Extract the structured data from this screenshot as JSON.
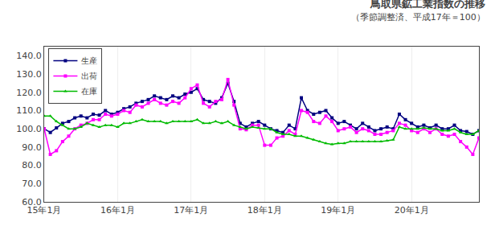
{
  "chart_data": {
    "type": "line",
    "title": "鳥取県鉱工業指数の推移",
    "subtitle": "（季節調整済、平成17年＝100）",
    "categories": [
      "15年1月",
      null,
      null,
      null,
      null,
      null,
      null,
      null,
      null,
      null,
      null,
      null,
      "16年1月",
      null,
      null,
      null,
      null,
      null,
      null,
      null,
      null,
      null,
      null,
      null,
      "17年1月",
      null,
      null,
      null,
      null,
      null,
      null,
      null,
      null,
      null,
      null,
      null,
      "18年1月",
      null,
      null,
      null,
      null,
      null,
      null,
      null,
      null,
      null,
      null,
      null,
      "19年1月",
      null,
      null,
      null,
      null,
      null,
      null,
      null,
      null,
      null,
      null,
      null,
      "20年1月",
      null,
      null,
      null,
      null,
      null,
      null,
      null,
      null,
      null,
      null,
      null
    ],
    "series": [
      {
        "name": "生産",
        "color": "#000080",
        "marker": "square",
        "line_style": "solid",
        "values": [
          100.0,
          98.0,
          100.5,
          103.0,
          104.0,
          106.0,
          107.0,
          106.0,
          108.0,
          107.5,
          110.0,
          108.0,
          109.0,
          111.0,
          112.0,
          114.0,
          115.0,
          116.0,
          118.0,
          117.0,
          116.0,
          118.0,
          117.0,
          119.0,
          120.0,
          122.0,
          116.0,
          115.0,
          114.0,
          117.0,
          125.0,
          115.0,
          103.0,
          101.0,
          103.0,
          104.0,
          102.0,
          100.0,
          99.0,
          98.0,
          102.0,
          100.0,
          117.0,
          110.0,
          108.0,
          109.0,
          110.0,
          106.0,
          103.0,
          104.0,
          102.0,
          100.0,
          103.0,
          101.0,
          99.0,
          100.0,
          101.0,
          100.0,
          108.0,
          105.0,
          103.0,
          101.0,
          102.0,
          100.5,
          102.0,
          100.0,
          100.0,
          102.0,
          99.0,
          98.5,
          97.0,
          99.0
        ]
      },
      {
        "name": "出荷",
        "color": "#FF00FF",
        "marker": "square",
        "line_style": "solid",
        "values": [
          100.0,
          86.0,
          88.0,
          93.0,
          96.0,
          100.0,
          102.0,
          103.0,
          105.0,
          105.0,
          108.0,
          107.0,
          108.0,
          110.0,
          109.0,
          113.0,
          112.0,
          114.0,
          116.0,
          114.0,
          113.0,
          115.0,
          114.0,
          117.0,
          122.0,
          124.0,
          114.0,
          112.0,
          115.0,
          116.0,
          127.0,
          113.0,
          100.0,
          99.5,
          102.0,
          102.0,
          91.0,
          91.0,
          95.0,
          96.0,
          99.0,
          97.0,
          110.0,
          109.0,
          104.0,
          103.0,
          107.0,
          104.0,
          99.0,
          100.0,
          101.0,
          98.0,
          100.0,
          99.0,
          97.0,
          97.0,
          98.0,
          99.0,
          103.0,
          102.0,
          99.0,
          98.0,
          100.0,
          98.0,
          100.0,
          97.0,
          96.0,
          97.0,
          93.0,
          90.0,
          86.0,
          95.0
        ]
      },
      {
        "name": "在庫",
        "color": "#00BB00",
        "marker": "triangle-up",
        "line_style": "solid",
        "values": [
          107.0,
          107.0,
          104.0,
          102.0,
          100.0,
          100.0,
          101.0,
          103.0,
          102.0,
          101.0,
          102.0,
          102.0,
          101.0,
          103.0,
          103.0,
          104.0,
          105.0,
          104.0,
          104.0,
          104.0,
          103.0,
          104.0,
          104.0,
          104.0,
          104.0,
          105.0,
          103.0,
          103.0,
          104.0,
          103.0,
          104.0,
          102.0,
          101.0,
          100.0,
          101.0,
          100.5,
          100.0,
          100.0,
          98.0,
          97.0,
          97.0,
          96.0,
          96.0,
          95.0,
          94.0,
          93.0,
          92.0,
          91.5,
          92.0,
          92.0,
          93.0,
          93.0,
          93.0,
          93.0,
          93.0,
          93.0,
          93.5,
          94.0,
          101.0,
          100.0,
          100.0,
          100.0,
          100.5,
          100.0,
          100.0,
          99.0,
          99.0,
          100.0,
          98.0,
          97.0,
          97.0,
          99.0
        ]
      }
    ],
    "ylim": [
      60.0,
      145.0
    ],
    "yticks": [
      {
        "value": 60.0,
        "label": "60.0"
      },
      {
        "value": 70.0,
        "label": "70.0"
      },
      {
        "value": 80.0,
        "label": "80.0"
      },
      {
        "value": 90.0,
        "label": "90.0"
      },
      {
        "value": 100.0,
        "label": "100.0"
      },
      {
        "value": 110.0,
        "label": "110.0"
      },
      {
        "value": 120.0,
        "label": "120.0"
      },
      {
        "value": 130.0,
        "label": "130.0"
      },
      {
        "value": 140.0,
        "label": "140.0"
      }
    ],
    "grid": "x",
    "legend": "upper left"
  }
}
